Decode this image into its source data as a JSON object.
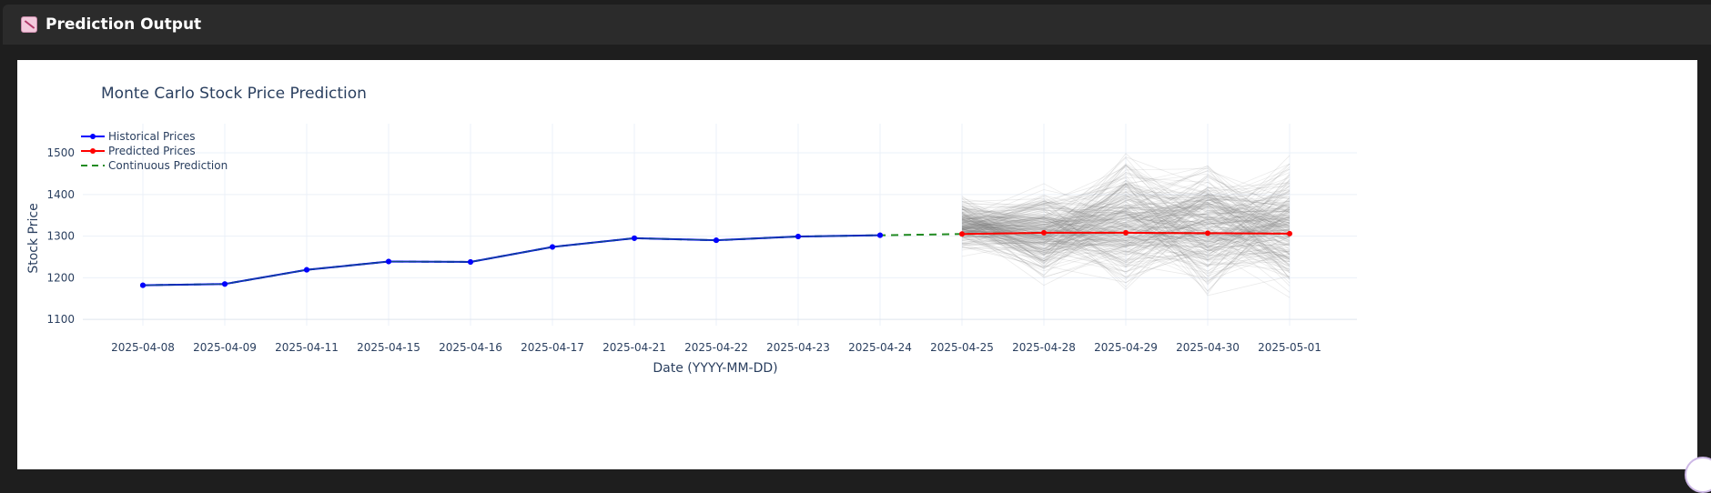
{
  "panel": {
    "title": "Prediction Output",
    "icon": "chart-icon"
  },
  "chart_data": {
    "type": "line",
    "title": "Monte Carlo Stock Price Prediction",
    "xlabel": "Date (YYYY-MM-DD)",
    "ylabel": "Stock Price",
    "ylim": [
      1085,
      1570
    ],
    "y_ticks": [
      1100,
      1200,
      1300,
      1400,
      1500
    ],
    "x_categories": [
      "2025-04-08",
      "2025-04-09",
      "2025-04-11",
      "2025-04-15",
      "2025-04-16",
      "2025-04-17",
      "2025-04-21",
      "2025-04-22",
      "2025-04-23",
      "2025-04-24",
      "2025-04-25",
      "2025-04-28",
      "2025-04-29",
      "2025-04-30",
      "2025-05-01"
    ],
    "grid": true,
    "legend_position": "top-left",
    "series": [
      {
        "name": "Historical Prices",
        "color": "#0000ff",
        "style": "line+markers",
        "x": [
          "2025-04-08",
          "2025-04-09",
          "2025-04-11",
          "2025-04-15",
          "2025-04-16",
          "2025-04-17",
          "2025-04-21",
          "2025-04-22",
          "2025-04-23",
          "2025-04-24"
        ],
        "y": [
          1182,
          1185,
          1219,
          1239,
          1238,
          1274,
          1295,
          1290,
          1299,
          1302
        ]
      },
      {
        "name": "Predicted Prices",
        "color": "#ff0000",
        "style": "line+markers",
        "x": [
          "2025-04-25",
          "2025-04-28",
          "2025-04-29",
          "2025-04-30",
          "2025-05-01"
        ],
        "y": [
          1305,
          1308,
          1308,
          1307,
          1306
        ]
      },
      {
        "name": "Continuous Prediction",
        "color": "#228b22",
        "style": "dashed",
        "x": [
          "2025-04-08",
          "2025-04-09",
          "2025-04-11",
          "2025-04-15",
          "2025-04-16",
          "2025-04-17",
          "2025-04-21",
          "2025-04-22",
          "2025-04-23",
          "2025-04-24",
          "2025-04-25",
          "2025-04-28",
          "2025-04-29",
          "2025-04-30",
          "2025-05-01"
        ],
        "y": [
          1182,
          1185,
          1219,
          1239,
          1238,
          1274,
          1295,
          1290,
          1299,
          1302,
          1305,
          1308,
          1308,
          1307,
          1306
        ]
      }
    ],
    "simulations": {
      "color": "#808080",
      "x": [
        "2025-04-25",
        "2025-04-28",
        "2025-04-29",
        "2025-04-30",
        "2025-05-01"
      ],
      "start_value": 1305,
      "spread": [
        [
          1240,
          1410
        ],
        [
          1175,
          1440
        ],
        [
          1140,
          1525
        ],
        [
          1130,
          1520
        ],
        [
          1120,
          1525
        ]
      ]
    }
  }
}
